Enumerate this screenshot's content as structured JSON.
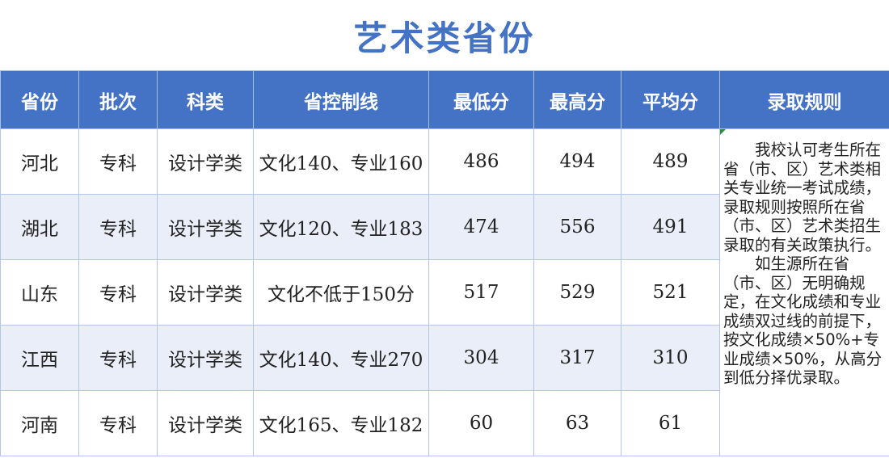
{
  "title": "艺术类省份",
  "headers": [
    "省份",
    "批次",
    "科类",
    "省控制线",
    "最低分",
    "最高分",
    "平均分",
    "录取规则"
  ],
  "rows": [
    {
      "province": "河北",
      "batch": "专科",
      "category": "设计学类",
      "control_line": "文化140、专业160",
      "min": "486",
      "max": "494",
      "avg": "489"
    },
    {
      "province": "湖北",
      "batch": "专科",
      "category": "设计学类",
      "control_line": "文化120、专业183",
      "min": "474",
      "max": "556",
      "avg": "491"
    },
    {
      "province": "山东",
      "batch": "专科",
      "category": "设计学类",
      "control_line": "文化不低于150分",
      "min": "517",
      "max": "529",
      "avg": "521"
    },
    {
      "province": "江西",
      "batch": "专科",
      "category": "设计学类",
      "control_line": "文化140、专业270",
      "min": "304",
      "max": "317",
      "avg": "310"
    },
    {
      "province": "河南",
      "batch": "专科",
      "category": "设计学类",
      "control_line": "文化165、专业182",
      "min": "60",
      "max": "63",
      "avg": "61"
    }
  ],
  "rules": "　　我校认可考生所在省（市、区）艺术类相关专业统一考试成绩，录取规则按照所在省（市、区）艺术类招生录取的有关政策执行。\n　　如生源所在省（市、区）无明确规定，在文化成绩和专业成绩双过线的前提下，按文化成绩×50%+专业成绩×50%，从高分到低分择优录取。",
  "colors": {
    "header_bg": "#4472c4",
    "title": "#4472c4",
    "alt_row": "#e9eef8",
    "border": "#b4c6e7"
  }
}
